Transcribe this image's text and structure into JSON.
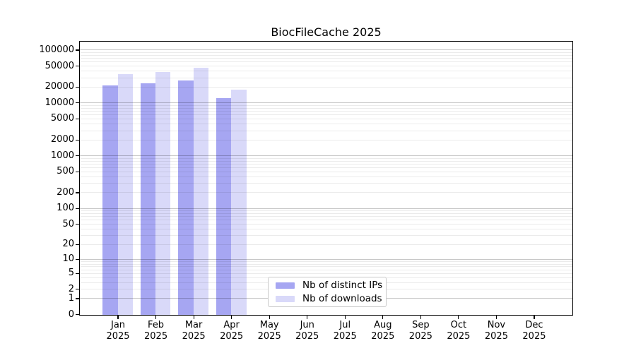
{
  "figure": {
    "title": "BiocFileCache 2025"
  },
  "chart_data": {
    "type": "bar",
    "title": "BiocFileCache 2025",
    "months": [
      "Jan",
      "Feb",
      "Mar",
      "Apr",
      "May",
      "Jun",
      "Jul",
      "Aug",
      "Sep",
      "Oct",
      "Nov",
      "Dec"
    ],
    "year": "2025",
    "categories": [
      "Jan 2025",
      "Feb 2025",
      "Mar 2025",
      "Apr 2025",
      "May 2025",
      "Jun 2025",
      "Jul 2025",
      "Aug 2025",
      "Sep 2025",
      "Oct 2025",
      "Nov 2025",
      "Dec 2025"
    ],
    "series": [
      {
        "name": "Nb of distinct IPs",
        "color": "#a6a6f2",
        "values": [
          21700,
          24300,
          27500,
          12600,
          0,
          0,
          0,
          0,
          0,
          0,
          0,
          0
        ]
      },
      {
        "name": "Nb of downloads",
        "color": "#d9d9f9",
        "values": [
          35200,
          39400,
          46800,
          18300,
          0,
          0,
          0,
          0,
          0,
          0,
          0,
          0
        ]
      }
    ],
    "y_axis": {
      "scale": "log10(value+1)",
      "ticks": [
        0,
        1,
        2,
        5,
        10,
        20,
        50,
        100,
        200,
        500,
        1000,
        2000,
        5000,
        10000,
        20000,
        50000,
        100000
      ],
      "max": 143000
    },
    "grid": {
      "major": true,
      "minor": true
    },
    "legend_position": "bottom-center"
  }
}
